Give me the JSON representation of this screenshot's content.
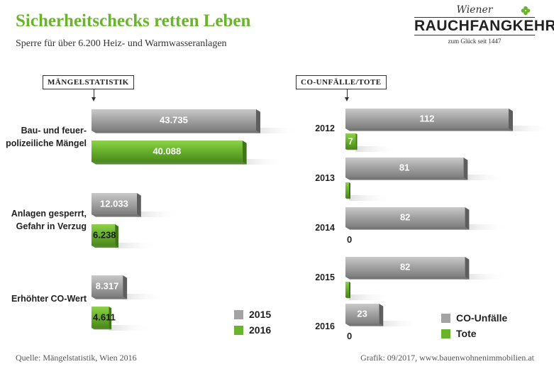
{
  "title": "Sicherheitschecks retten Leben",
  "subtitle": "Sperre für über 6.200 Heiz- und Warmwasseranlagen",
  "logo": {
    "script": "Wiener",
    "main": "RAUCHFANGKEHRER",
    "since": "zum Glück seit 1447"
  },
  "footer": {
    "source": "Quelle: Mängelstatistik, Wien 2016",
    "credit": "Grafik: 09/2017, www.bauenwohnenimmobilien.at"
  },
  "colors": {
    "gray": "#a3a3a3",
    "green": "#6ab42d",
    "title_green": "#6ab42d"
  },
  "chart_data": [
    {
      "type": "bar",
      "orientation": "horizontal",
      "title": "MÄNGELSTATISTIK",
      "categories": [
        "Bau- und feuer-\npolizeiliche Mängel",
        "Anlagen gesperrt,\nGefahr in Verzug",
        "Erhöhter CO-Wert"
      ],
      "series": [
        {
          "name": "2015",
          "color": "#a3a3a3",
          "values": [
            43735,
            12033,
            8317
          ],
          "labels": [
            "43.735",
            "12.033",
            "8.317"
          ]
        },
        {
          "name": "2016",
          "color": "#6ab42d",
          "values": [
            40088,
            6238,
            4611
          ],
          "labels": [
            "40.088",
            "6.238",
            "4.611"
          ]
        }
      ],
      "legend": "bottom-right",
      "grid": false
    },
    {
      "type": "bar",
      "orientation": "horizontal",
      "title": "CO-UNFÄLLE/TOTE",
      "categories": [
        "2012",
        "2013",
        "2014",
        "2015",
        "2016"
      ],
      "series": [
        {
          "name": "CO-Unfälle",
          "color": "#a3a3a3",
          "values": [
            112,
            81,
            82,
            82,
            23
          ],
          "labels": [
            "112",
            "81",
            "82",
            "82",
            "23"
          ]
        },
        {
          "name": "Tote",
          "color": "#6ab42d",
          "values": [
            7,
            1,
            0,
            1,
            0
          ],
          "labels": [
            "7",
            "1",
            "0",
            "1",
            "0"
          ]
        }
      ],
      "legend": "bottom-right",
      "grid": false
    }
  ]
}
